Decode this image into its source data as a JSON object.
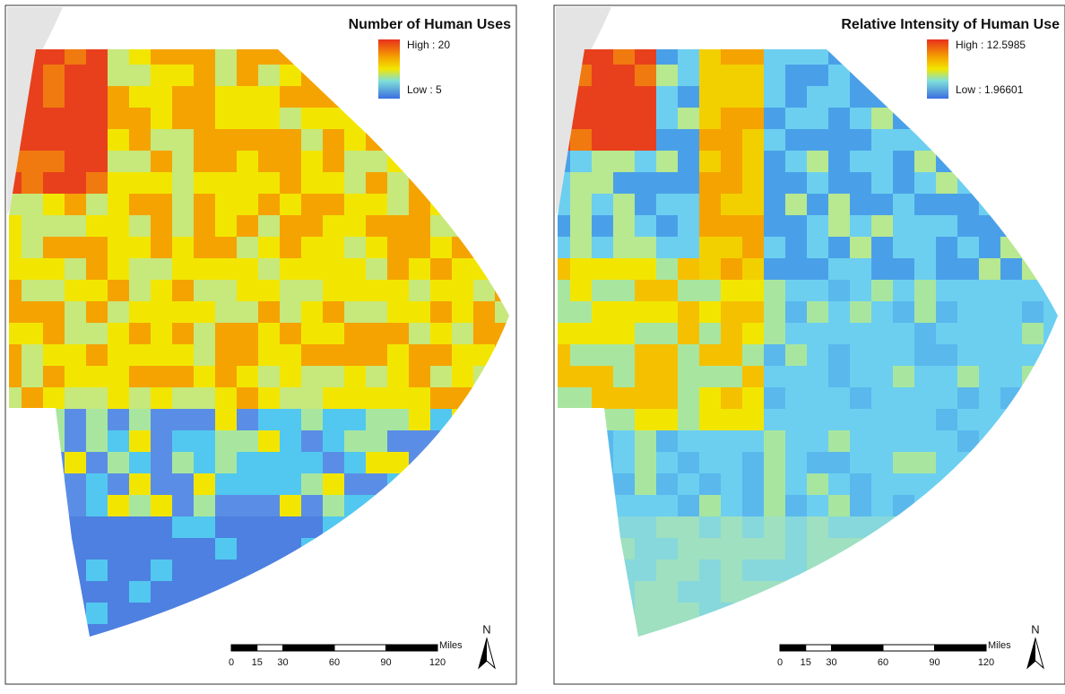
{
  "panels": [
    {
      "title": "Number of Human Uses",
      "legend": {
        "high": "High : 20",
        "low": "Low : 5"
      },
      "scale": {
        "unit": "Miles",
        "ticks": [
          0,
          15,
          30,
          60,
          90,
          120
        ]
      },
      "north": "N"
    },
    {
      "title": "Relative Intensity of Human Use",
      "legend": {
        "high": "High : 12.5985",
        "low": "Low : 1.96601"
      },
      "scale": {
        "unit": "Miles",
        "ticks": [
          0,
          15,
          30,
          60,
          90,
          120
        ]
      },
      "north": "N"
    }
  ]
}
